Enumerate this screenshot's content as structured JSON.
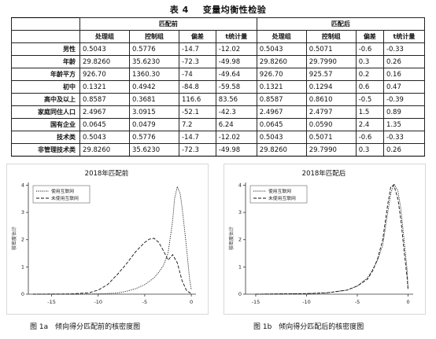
{
  "table": {
    "number": "表 4",
    "title": "变量均衡性检验",
    "group_headers": [
      "匹配前",
      "匹配后"
    ],
    "column_headers": [
      "处理组",
      "控制组",
      "偏差",
      "t统计量",
      "处理组",
      "控制组",
      "偏差",
      "t统计量"
    ],
    "rows": [
      {
        "label": "男性",
        "values": [
          "0.5043",
          "0.5776",
          "-14.7",
          "-12.02",
          "0.5043",
          "0.5071",
          "-0.6",
          "-0.33"
        ]
      },
      {
        "label": "年龄",
        "values": [
          "29.8260",
          "35.6230",
          "-72.3",
          "-49.98",
          "29.8260",
          "29.7990",
          "0.3",
          "0.26"
        ]
      },
      {
        "label": "年龄平方",
        "values": [
          "926.70",
          "1360.30",
          "-74",
          "-49.64",
          "926.70",
          "925.57",
          "0.2",
          "0.16"
        ]
      },
      {
        "label": "初中",
        "values": [
          "0.1321",
          "0.4942",
          "-84.8",
          "-59.58",
          "0.1321",
          "0.1294",
          "0.6",
          "0.47"
        ]
      },
      {
        "label": "高中及以上",
        "values": [
          "0.8587",
          "0.3681",
          "116.6",
          "83.56",
          "0.8587",
          "0.8610",
          "-0.5",
          "-0.39"
        ]
      },
      {
        "label": "家庭同住人口",
        "values": [
          "2.4967",
          "3.0915",
          "-52.1",
          "-42.3",
          "2.4967",
          "2.4797",
          "1.5",
          "0.89"
        ]
      },
      {
        "label": "国有企业",
        "values": [
          "0.0645",
          "0.0479",
          "7.2",
          "6.24",
          "0.0645",
          "0.0590",
          "2.4",
          "1.35"
        ]
      },
      {
        "label": "技术类",
        "values": [
          "0.5043",
          "0.5776",
          "-14.7",
          "-12.02",
          "0.5043",
          "0.5071",
          "-0.6",
          "-0.33"
        ]
      },
      {
        "label": "非管理技术类",
        "values": [
          "29.8260",
          "35.6230",
          "-72.3",
          "-49.98",
          "29.8260",
          "29.7990",
          "0.3",
          "0.26"
        ]
      }
    ]
  },
  "chart_data": [
    {
      "type": "line",
      "title": "2018年匹配前",
      "ylabel": "核密度估计",
      "xlabel": "",
      "xlim": [
        -17.5,
        0.5
      ],
      "ylim": [
        0,
        4.1
      ],
      "xticks": [
        -15,
        -10,
        -5,
        0
      ],
      "yticks": [
        0,
        1,
        2,
        3,
        4
      ],
      "legend_position": "top-left",
      "series": [
        {
          "name": "使用互联网",
          "style": "dotted",
          "x": [
            -17,
            -12,
            -10,
            -8,
            -7,
            -6,
            -5,
            -4,
            -3.5,
            -3,
            -2.5,
            -2,
            -1.8,
            -1.5,
            -1.2,
            -1,
            -0.7,
            -0.4,
            -0.2,
            0
          ],
          "values": [
            0,
            0,
            0.01,
            0.04,
            0.1,
            0.2,
            0.35,
            0.6,
            0.8,
            1.05,
            1.5,
            2.7,
            3.5,
            3.95,
            3.7,
            3.2,
            2.3,
            1.3,
            0.6,
            0.15
          ]
        },
        {
          "name": "未使用互联网",
          "style": "dashed",
          "x": [
            -17,
            -13,
            -11,
            -10,
            -9,
            -8,
            -7,
            -6,
            -5,
            -4.5,
            -4,
            -3.5,
            -3,
            -2.5,
            -2,
            -1.5,
            -1,
            -0.5,
            0
          ],
          "values": [
            0,
            0.01,
            0.05,
            0.15,
            0.35,
            0.7,
            1.1,
            1.55,
            1.9,
            2.02,
            2.05,
            1.9,
            1.6,
            1.25,
            1.45,
            1.15,
            0.5,
            0.12,
            0.02
          ]
        }
      ]
    },
    {
      "type": "line",
      "title": "2018年匹配后",
      "ylabel": "核密度估计",
      "xlabel": "",
      "xlim": [
        -16,
        0.5
      ],
      "ylim": [
        0,
        4.1
      ],
      "xticks": [
        -15,
        -10,
        -5,
        0
      ],
      "yticks": [
        0,
        1,
        2,
        3,
        4
      ],
      "legend_position": "top-left",
      "series": [
        {
          "name": "使用互联网",
          "style": "dotted",
          "x": [
            -15,
            -10,
            -8,
            -6,
            -5,
            -4,
            -3.5,
            -3,
            -2.5,
            -2,
            -1.7,
            -1.4,
            -1,
            -0.7,
            -0.4,
            -0.1,
            0
          ],
          "values": [
            0,
            0.02,
            0.05,
            0.15,
            0.3,
            0.6,
            0.9,
            1.25,
            1.8,
            3.0,
            3.7,
            4.05,
            3.8,
            3.1,
            2.0,
            0.9,
            0.2
          ]
        },
        {
          "name": "未使用互联网",
          "style": "dashed",
          "x": [
            -15,
            -10,
            -8,
            -6,
            -5,
            -4,
            -3.5,
            -3,
            -2.5,
            -2,
            -1.7,
            -1.4,
            -1,
            -0.7,
            -0.4,
            -0.1,
            0
          ],
          "values": [
            0,
            0.02,
            0.05,
            0.15,
            0.3,
            0.55,
            0.85,
            1.3,
            2.0,
            3.3,
            3.95,
            4.0,
            3.5,
            2.7,
            1.6,
            0.6,
            0.15
          ]
        }
      ]
    }
  ],
  "captions": {
    "left": "图 1a　倾向得分匹配前的核密度图",
    "right": "图 1b　倾向得分匹配后的核密度图"
  },
  "colors": {
    "line": "#111111",
    "frame": "#d8d8d8"
  }
}
